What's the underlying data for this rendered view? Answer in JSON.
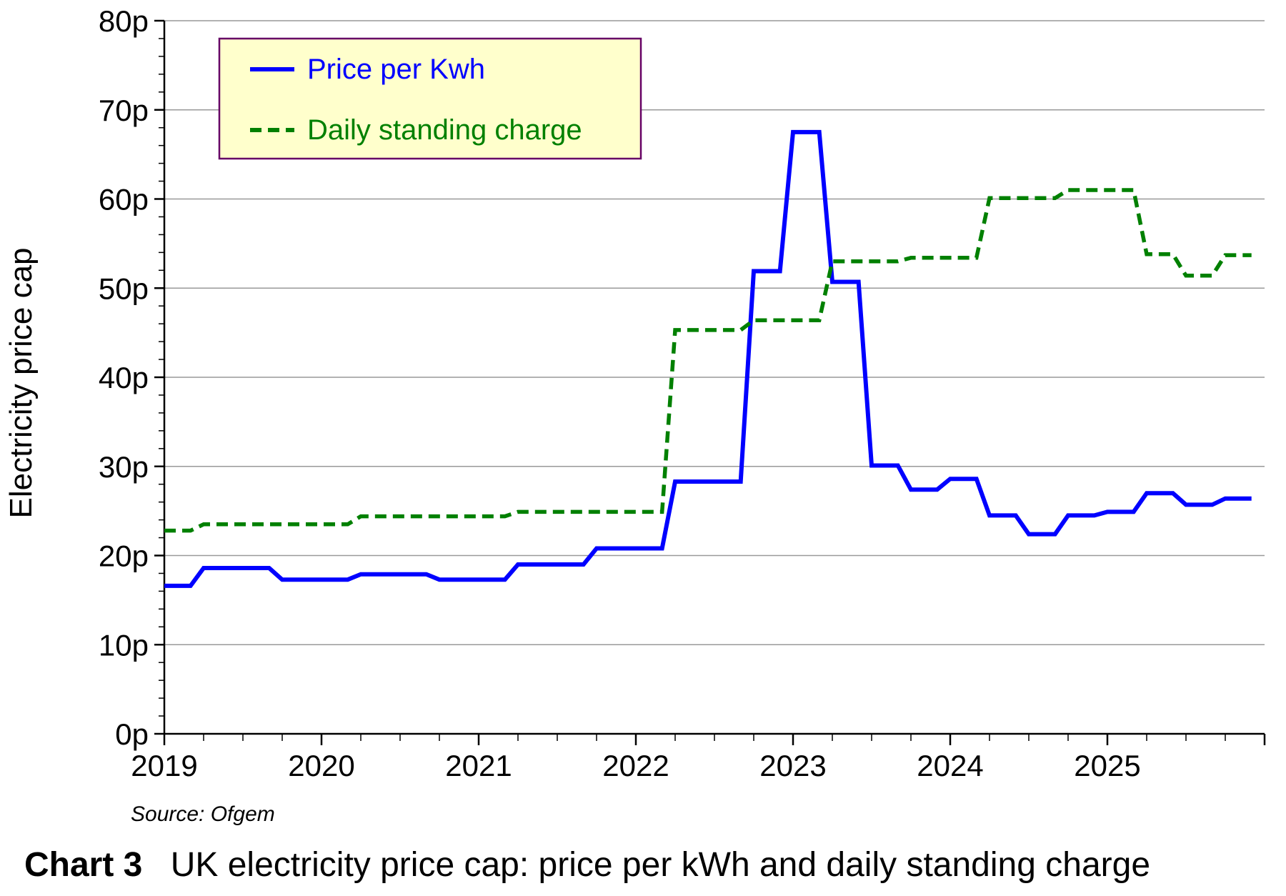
{
  "chart_data": {
    "type": "line",
    "ylabel": "Electricity price cap",
    "xlabel": "",
    "y_tick_labels": [
      "0p",
      "10p",
      "20p",
      "30p",
      "40p",
      "50p",
      "60p",
      "70p",
      "80p"
    ],
    "x_tick_labels": [
      "2019",
      "2020",
      "2021",
      "2022",
      "2023",
      "2024",
      "2025"
    ],
    "ylim": [
      0,
      80
    ],
    "xlim": [
      "2019-01",
      "2026-01"
    ],
    "grid": "horizontal",
    "legend_position": "top-left",
    "legend_bg": "#FFFFCC",
    "legend_border": "#660066",
    "source": "Source: Ofgem",
    "caption_label": "Chart 3",
    "caption_text": "UK electricity price cap: price per kWh and daily standing charge",
    "series": [
      {
        "name": "Price per Kwh",
        "color": "#0000FF",
        "style": "solid",
        "points": [
          [
            "2019-01",
            16.6
          ],
          [
            "2019-03",
            16.6
          ],
          [
            "2019-04",
            18.6
          ],
          [
            "2019-09",
            18.6
          ],
          [
            "2019-10",
            17.3
          ],
          [
            "2020-03",
            17.3
          ],
          [
            "2020-04",
            17.9
          ],
          [
            "2020-09",
            17.9
          ],
          [
            "2020-10",
            17.3
          ],
          [
            "2021-03",
            17.3
          ],
          [
            "2021-04",
            19.0
          ],
          [
            "2021-09",
            19.0
          ],
          [
            "2021-10",
            20.8
          ],
          [
            "2022-03",
            20.8
          ],
          [
            "2022-04",
            28.3
          ],
          [
            "2022-09",
            28.3
          ],
          [
            "2022-10",
            51.9
          ],
          [
            "2022-12",
            51.9
          ],
          [
            "2023-01",
            67.5
          ],
          [
            "2023-03",
            67.5
          ],
          [
            "2023-04",
            50.7
          ],
          [
            "2023-06",
            50.7
          ],
          [
            "2023-07",
            30.1
          ],
          [
            "2023-09",
            30.1
          ],
          [
            "2023-10",
            27.4
          ],
          [
            "2023-12",
            27.4
          ],
          [
            "2024-01",
            28.6
          ],
          [
            "2024-03",
            28.6
          ],
          [
            "2024-04",
            24.5
          ],
          [
            "2024-06",
            24.5
          ],
          [
            "2024-07",
            22.4
          ],
          [
            "2024-09",
            22.4
          ],
          [
            "2024-10",
            24.5
          ],
          [
            "2024-12",
            24.5
          ],
          [
            "2025-01",
            24.9
          ],
          [
            "2025-03",
            24.9
          ],
          [
            "2025-04",
            27.0
          ],
          [
            "2025-06",
            27.0
          ],
          [
            "2025-07",
            25.7
          ],
          [
            "2025-09",
            25.7
          ],
          [
            "2025-10",
            26.4
          ],
          [
            "2025-12",
            26.4
          ]
        ]
      },
      {
        "name": "Daily standing charge",
        "color": "#008000",
        "style": "dashed",
        "points": [
          [
            "2019-01",
            22.8
          ],
          [
            "2019-03",
            22.8
          ],
          [
            "2019-04",
            23.5
          ],
          [
            "2020-03",
            23.5
          ],
          [
            "2020-04",
            24.4
          ],
          [
            "2021-03",
            24.4
          ],
          [
            "2021-04",
            24.9
          ],
          [
            "2022-03",
            24.9
          ],
          [
            "2022-04",
            45.3
          ],
          [
            "2022-09",
            45.3
          ],
          [
            "2022-10",
            46.4
          ],
          [
            "2023-03",
            46.4
          ],
          [
            "2023-04",
            53.0
          ],
          [
            "2023-09",
            53.0
          ],
          [
            "2023-10",
            53.4
          ],
          [
            "2024-03",
            53.4
          ],
          [
            "2024-04",
            60.1
          ],
          [
            "2024-09",
            60.1
          ],
          [
            "2024-10",
            61.0
          ],
          [
            "2025-03",
            61.0
          ],
          [
            "2025-04",
            53.8
          ],
          [
            "2025-06",
            53.8
          ],
          [
            "2025-07",
            51.4
          ],
          [
            "2025-09",
            51.4
          ],
          [
            "2025-10",
            53.7
          ],
          [
            "2025-12",
            53.7
          ]
        ]
      }
    ]
  }
}
